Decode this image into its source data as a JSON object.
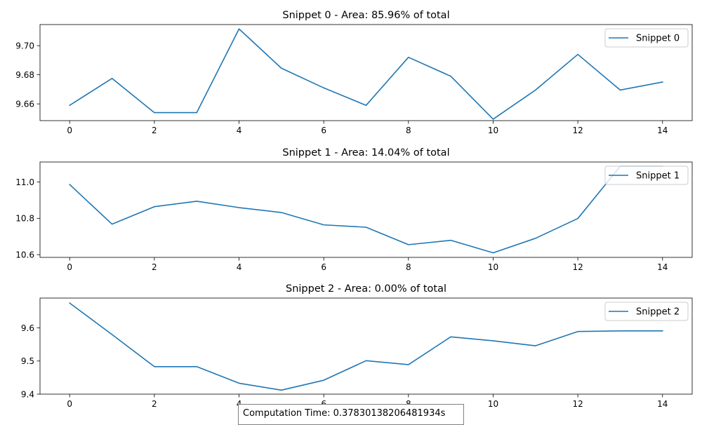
{
  "chart_data": [
    {
      "type": "line",
      "title": "Snippet 0 - Area: 85.96% of total",
      "legend": "top-right",
      "grid": false,
      "xlim": [
        -0.7,
        14.7
      ],
      "ylim": [
        9.6485,
        9.7145
      ],
      "xticks": [
        0,
        2,
        4,
        6,
        8,
        10,
        12,
        14
      ],
      "yticks": [
        9.66,
        9.68,
        9.7
      ],
      "ytick_labels": [
        "9.66",
        "9.68",
        "9.70"
      ],
      "series": [
        {
          "name": "Snippet 0",
          "color": "#1f77b4",
          "x": [
            0,
            1,
            2,
            3,
            4,
            5,
            6,
            7,
            8,
            9,
            10,
            11,
            12,
            13,
            14
          ],
          "y": [
            9.659,
            9.6775,
            9.654,
            9.654,
            9.7115,
            9.6845,
            9.671,
            9.659,
            9.692,
            9.679,
            9.6495,
            9.6695,
            9.694,
            9.6695,
            9.675
          ]
        }
      ]
    },
    {
      "type": "line",
      "title": "Snippet 1 - Area: 14.04% of total",
      "legend": "top-right",
      "grid": false,
      "xlim": [
        -0.7,
        14.7
      ],
      "ylim": [
        10.585,
        11.11
      ],
      "xticks": [
        0,
        2,
        4,
        6,
        8,
        10,
        12,
        14
      ],
      "yticks": [
        10.6,
        10.8,
        11.0
      ],
      "ytick_labels": [
        "10.6",
        "10.8",
        "11.0"
      ],
      "series": [
        {
          "name": "Snippet 1",
          "color": "#1f77b4",
          "x": [
            0,
            1,
            2,
            3,
            4,
            5,
            6,
            7,
            8,
            9,
            10,
            11,
            12,
            13,
            14
          ],
          "y": [
            10.986,
            10.768,
            10.864,
            10.894,
            10.859,
            10.832,
            10.764,
            10.751,
            10.655,
            10.679,
            10.61,
            10.69,
            10.799,
            11.086,
            11.086
          ]
        }
      ]
    },
    {
      "type": "line",
      "title": "Snippet 2 - Area: 0.00% of total",
      "legend": "top-right",
      "grid": false,
      "xlim": [
        -0.7,
        14.7
      ],
      "ylim": [
        9.4,
        9.69
      ],
      "xticks": [
        0,
        2,
        4,
        6,
        8,
        10,
        12,
        14
      ],
      "yticks": [
        9.4,
        9.5,
        9.6
      ],
      "ytick_labels": [
        "9.4",
        "9.5",
        "9.6"
      ],
      "series": [
        {
          "name": "Snippet 2",
          "color": "#1f77b4",
          "x": [
            0,
            1,
            2,
            3,
            4,
            5,
            6,
            7,
            8,
            9,
            10,
            11,
            12,
            13,
            14
          ],
          "y": [
            9.675,
            9.58,
            9.483,
            9.483,
            9.433,
            9.412,
            9.442,
            9.501,
            9.489,
            9.573,
            9.561,
            9.546,
            9.589,
            9.591,
            9.591
          ]
        }
      ]
    }
  ],
  "footer": {
    "computation_time": "Computation Time: 0.37830138206481934s"
  }
}
